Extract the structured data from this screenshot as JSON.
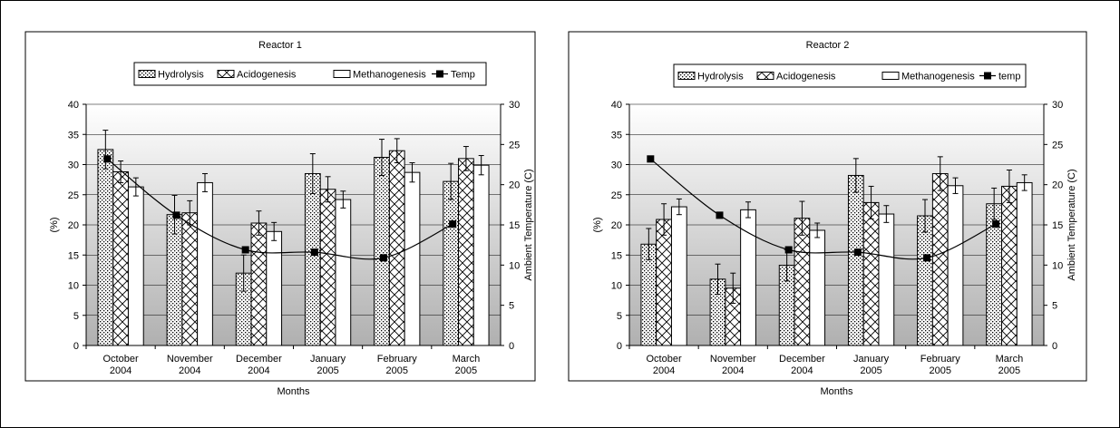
{
  "chart_data": [
    {
      "type": "bar",
      "title": "Reactor 1",
      "xlabel": "Months",
      "ylabel": "(%)",
      "y2label": "Ambient Temperature (C)",
      "ylim": [
        0,
        40
      ],
      "y2lim": [
        0,
        30
      ],
      "yticks": [
        "0",
        "5",
        "10",
        "15",
        "20",
        "25",
        "30",
        "35",
        "40"
      ],
      "y2ticks": [
        "0",
        "5",
        "10",
        "15",
        "20",
        "25",
        "30"
      ],
      "grid": true,
      "legend_position": "top",
      "categories": [
        [
          "October",
          "2004"
        ],
        [
          "November",
          "2004"
        ],
        [
          "December",
          "2004"
        ],
        [
          "January",
          "2005"
        ],
        [
          "February",
          "2005"
        ],
        [
          "March",
          "2005"
        ]
      ],
      "series": [
        {
          "name": "Hydrolysis",
          "pattern": "dots",
          "values": [
            32.5,
            21.7,
            12.0,
            28.5,
            31.2,
            27.2
          ],
          "errors": [
            3.2,
            3.2,
            3.0,
            3.3,
            3.0,
            3.0
          ]
        },
        {
          "name": "Acidogenesis",
          "pattern": "crosshatch",
          "values": [
            28.8,
            22.0,
            20.3,
            25.9,
            32.3,
            31.0
          ],
          "errors": [
            1.8,
            2.0,
            2.0,
            2.1,
            2.0,
            2.0
          ]
        },
        {
          "name": "Methanogenesis",
          "pattern": "plain",
          "values": [
            26.3,
            27.0,
            18.9,
            24.2,
            28.7,
            29.9
          ],
          "errors": [
            1.5,
            1.5,
            1.5,
            1.4,
            1.6,
            1.6
          ]
        }
      ],
      "line": {
        "name": "Temp",
        "values": [
          23.2,
          16.2,
          11.9,
          11.6,
          10.9,
          15.1
        ]
      }
    },
    {
      "type": "bar",
      "title": "Reactor 2",
      "xlabel": "Months",
      "ylabel": "(%)",
      "y2label": "Ambient Temperature (C)",
      "ylim": [
        0,
        40
      ],
      "y2lim": [
        0,
        30
      ],
      "yticks": [
        "0",
        "5",
        "10",
        "15",
        "20",
        "25",
        "30",
        "35",
        "40"
      ],
      "y2ticks": [
        "0",
        "5",
        "10",
        "15",
        "20",
        "25",
        "30"
      ],
      "grid": true,
      "legend_position": "top",
      "categories": [
        [
          "October",
          "2004"
        ],
        [
          "November",
          "2004"
        ],
        [
          "December",
          "2004"
        ],
        [
          "January",
          "2005"
        ],
        [
          "February",
          "2005"
        ],
        [
          "March",
          "2005"
        ]
      ],
      "series": [
        {
          "name": "Hydrolysis",
          "pattern": "dots",
          "values": [
            16.8,
            11.0,
            13.3,
            28.2,
            21.5,
            23.5
          ],
          "errors": [
            2.6,
            2.5,
            2.6,
            2.8,
            2.7,
            2.6
          ]
        },
        {
          "name": "Acidogenesis",
          "pattern": "crosshatch",
          "values": [
            20.9,
            9.5,
            21.1,
            23.7,
            28.5,
            26.4
          ],
          "errors": [
            2.6,
            2.5,
            2.8,
            2.7,
            2.8,
            2.7
          ]
        },
        {
          "name": "Methanogenesis",
          "pattern": "plain",
          "values": [
            23.0,
            22.5,
            19.1,
            21.8,
            26.5,
            27.0
          ],
          "errors": [
            1.3,
            1.3,
            1.2,
            1.4,
            1.3,
            1.3
          ]
        }
      ],
      "line": {
        "name": "temp",
        "values": [
          23.2,
          16.2,
          11.9,
          11.6,
          10.9,
          15.1
        ]
      }
    }
  ]
}
